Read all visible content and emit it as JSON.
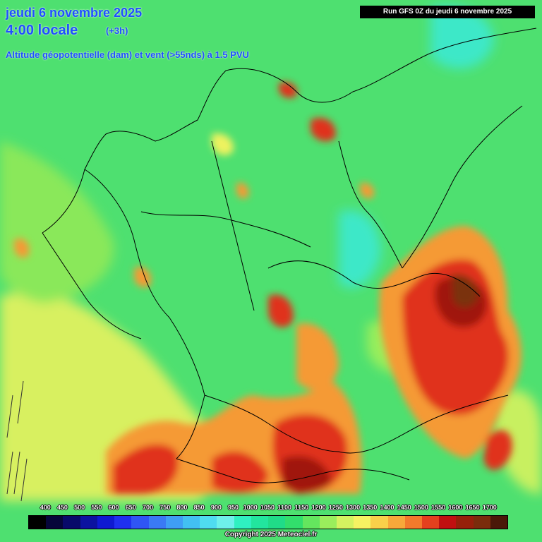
{
  "header": {
    "date": "jeudi 6 novembre 2025",
    "time": "4:00 locale",
    "step": "(+3h)",
    "parameter": "Altitude géopotentielle (dam) et vent (>55nds) à 1.5 PVU",
    "run": "Run GFS 0Z du jeudi 6 novembre 2025"
  },
  "legend": {
    "ticks": [
      "400",
      "450",
      "500",
      "550",
      "600",
      "650",
      "700",
      "750",
      "800",
      "850",
      "900",
      "950",
      "1000",
      "1050",
      "1100",
      "1150",
      "1200",
      "1250",
      "1300",
      "1350",
      "1400",
      "1450",
      "1500",
      "1550",
      "1600",
      "1650",
      "1700"
    ],
    "colors": [
      "#000000",
      "#06063a",
      "#080a6a",
      "#0c12a0",
      "#0f1ad2",
      "#1f30f0",
      "#2f55f5",
      "#3a7af5",
      "#3f9ef5",
      "#42c0f2",
      "#4fdcf0",
      "#6ef0ea",
      "#2ff0c0",
      "#22e69e",
      "#20dc88",
      "#32de6c",
      "#64e65e",
      "#9aee5c",
      "#d4f260",
      "#f6f262",
      "#f9d04a",
      "#f7a83a",
      "#f27a2c",
      "#e4401e",
      "#c01010",
      "#96200a",
      "#7a2c0c",
      "#4a1808"
    ],
    "copyright": "Copyright 2025 Meteociel.fr"
  },
  "map": {
    "background_color": "#4ee070",
    "hotspot_colors": {
      "green_light": "#8ae85a",
      "yellow": "#eef25e",
      "orange": "#f59a36",
      "red": "#e0301c",
      "dark_red": "#a01808",
      "brown": "#7a3010",
      "cyan": "#3ce8c8"
    }
  }
}
